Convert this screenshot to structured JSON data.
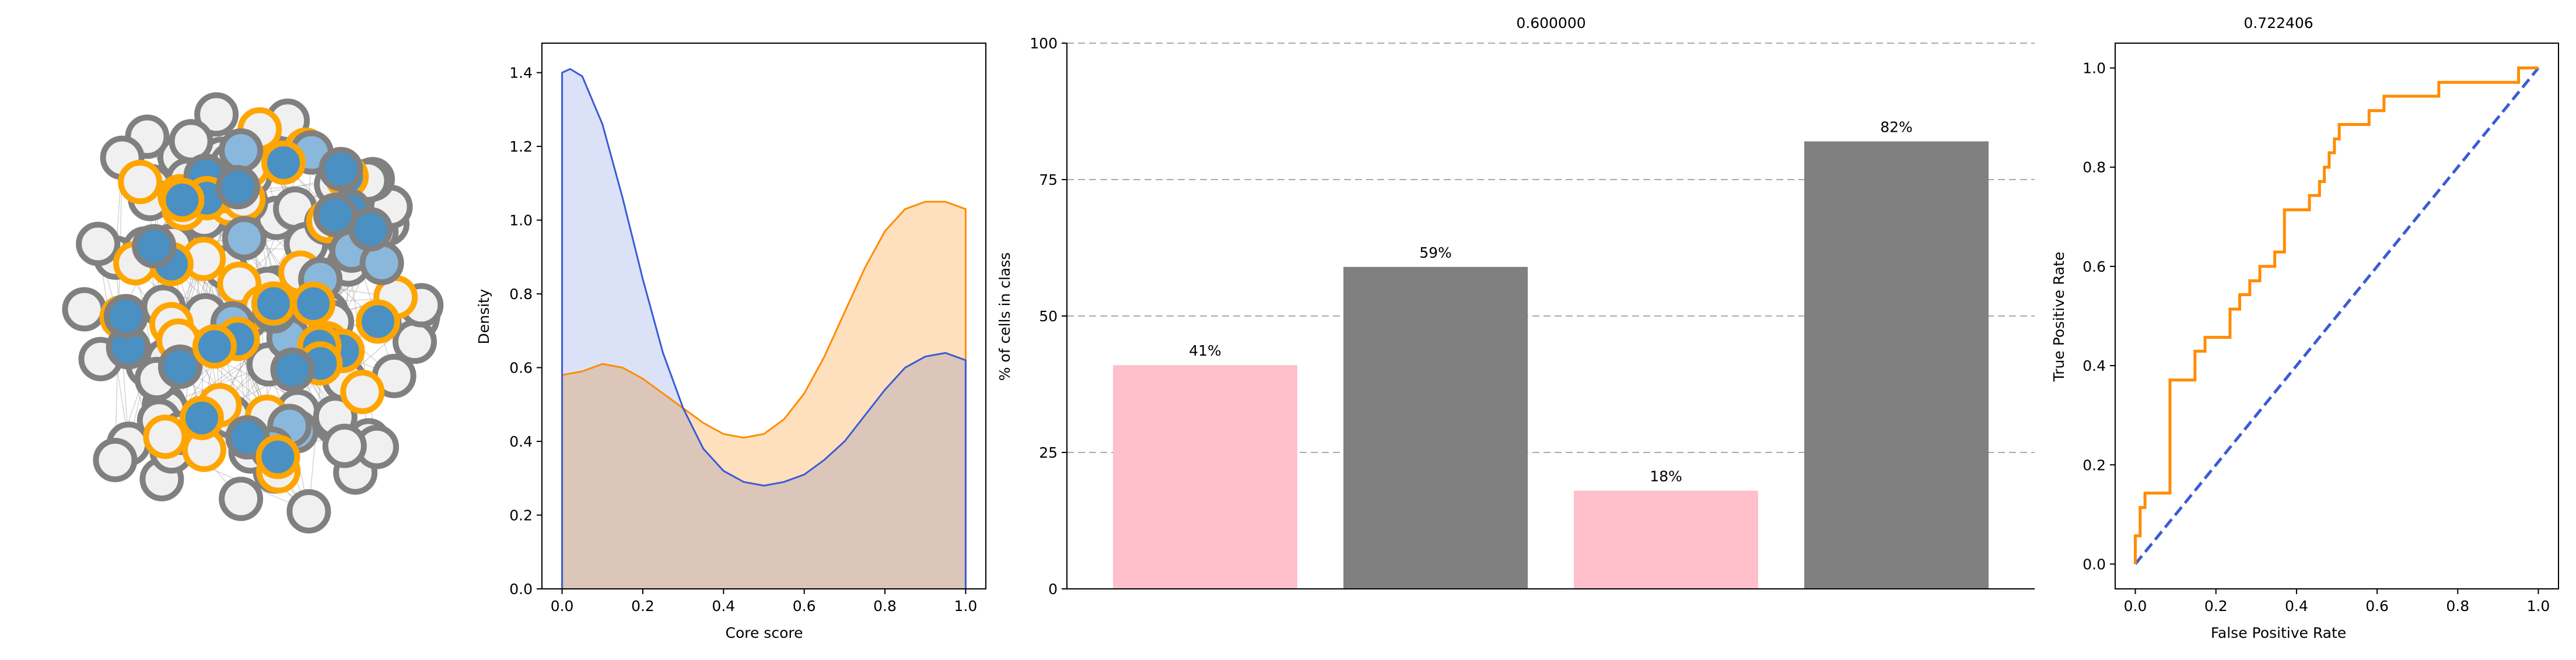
{
  "colors": {
    "blue": "#3b5bd6",
    "blue_fill": "#cfd8f5",
    "orange": "#ff8c00",
    "orange_fill": "#ffe0be",
    "overlap_fill": "#d0c4c8",
    "pink": "#ffc0cb",
    "gray": "#808080",
    "node_gray_edge": "#808080",
    "node_gray_fill": "#f0f0f0",
    "node_orange_edge": "#ffa500",
    "node_blue_fill": "#4a90c2",
    "node_lightblue_fill": "#8ab8dc",
    "edge": "#a0a0a0",
    "grid": "#aaaaaa"
  },
  "chart_data": [
    {
      "type": "network",
      "description_nodes": {
        "gray_periphery": 78,
        "orange_outlined": 26,
        "blue_core": 40
      },
      "node_outline_colors": [
        "gray",
        "orange"
      ],
      "node_fill_colors": [
        "light gray",
        "blue",
        "light blue"
      ]
    },
    {
      "type": "area",
      "xlabel": "Core score",
      "ylabel": "Density",
      "xlim": [
        -0.05,
        1.05
      ],
      "ylim": [
        0.0,
        1.48
      ],
      "xticks": [
        "0.0",
        "0.2",
        "0.4",
        "0.6",
        "0.8",
        "1.0"
      ],
      "yticks": [
        "0.0",
        "0.2",
        "0.4",
        "0.6",
        "0.8",
        "1.0",
        "1.2",
        "1.4"
      ],
      "series": [
        {
          "color": "blue",
          "x": [
            0.0,
            0.02,
            0.05,
            0.1,
            0.15,
            0.2,
            0.25,
            0.3,
            0.35,
            0.4,
            0.45,
            0.5,
            0.55,
            0.6,
            0.65,
            0.7,
            0.75,
            0.8,
            0.85,
            0.9,
            0.95,
            1.0
          ],
          "y": [
            1.4,
            1.41,
            1.39,
            1.26,
            1.06,
            0.84,
            0.64,
            0.49,
            0.38,
            0.32,
            0.29,
            0.28,
            0.29,
            0.31,
            0.35,
            0.4,
            0.47,
            0.54,
            0.6,
            0.63,
            0.64,
            0.62
          ]
        },
        {
          "color": "orange",
          "x": [
            0.0,
            0.05,
            0.1,
            0.15,
            0.2,
            0.25,
            0.3,
            0.35,
            0.4,
            0.45,
            0.5,
            0.55,
            0.6,
            0.65,
            0.7,
            0.75,
            0.8,
            0.85,
            0.9,
            0.95,
            1.0
          ],
          "y": [
            0.58,
            0.59,
            0.61,
            0.6,
            0.57,
            0.53,
            0.49,
            0.45,
            0.42,
            0.41,
            0.42,
            0.46,
            0.53,
            0.63,
            0.75,
            0.87,
            0.97,
            1.03,
            1.05,
            1.05,
            1.03
          ]
        }
      ]
    },
    {
      "type": "bar",
      "title": "0.600000",
      "ylabel": "% of cells in class",
      "ylim": [
        0,
        100
      ],
      "yticks": [
        0,
        25,
        50,
        75,
        100
      ],
      "grid": "horizontal dashed",
      "values": [
        41,
        59,
        18,
        82
      ],
      "value_labels": [
        "41%",
        "59%",
        "18%",
        "82%"
      ],
      "bar_colors": [
        "pink",
        "gray",
        "pink",
        "gray"
      ]
    },
    {
      "type": "line",
      "title": "0.722406",
      "xlabel": "False Positive Rate",
      "ylabel": "True Positive Rate",
      "xlim": [
        -0.05,
        1.05
      ],
      "ylim": [
        -0.05,
        1.05
      ],
      "xticks": [
        "0.0",
        "0.2",
        "0.4",
        "0.6",
        "0.8",
        "1.0"
      ],
      "yticks": [
        "0.0",
        "0.2",
        "0.4",
        "0.6",
        "0.8",
        "1.0"
      ],
      "roc_curve": {
        "color": "orange",
        "points": [
          [
            0.0,
            0.0
          ],
          [
            0.0,
            0.057
          ],
          [
            0.012,
            0.057
          ],
          [
            0.012,
            0.114
          ],
          [
            0.024,
            0.114
          ],
          [
            0.024,
            0.143
          ],
          [
            0.086,
            0.143
          ],
          [
            0.086,
            0.371
          ],
          [
            0.148,
            0.371
          ],
          [
            0.148,
            0.429
          ],
          [
            0.173,
            0.429
          ],
          [
            0.173,
            0.457
          ],
          [
            0.235,
            0.457
          ],
          [
            0.235,
            0.514
          ],
          [
            0.259,
            0.514
          ],
          [
            0.259,
            0.543
          ],
          [
            0.284,
            0.543
          ],
          [
            0.284,
            0.571
          ],
          [
            0.309,
            0.571
          ],
          [
            0.309,
            0.6
          ],
          [
            0.346,
            0.6
          ],
          [
            0.346,
            0.629
          ],
          [
            0.37,
            0.629
          ],
          [
            0.37,
            0.714
          ],
          [
            0.432,
            0.714
          ],
          [
            0.432,
            0.743
          ],
          [
            0.457,
            0.743
          ],
          [
            0.457,
            0.771
          ],
          [
            0.469,
            0.771
          ],
          [
            0.469,
            0.8
          ],
          [
            0.481,
            0.8
          ],
          [
            0.481,
            0.829
          ],
          [
            0.494,
            0.829
          ],
          [
            0.494,
            0.857
          ],
          [
            0.506,
            0.857
          ],
          [
            0.506,
            0.886
          ],
          [
            0.58,
            0.886
          ],
          [
            0.58,
            0.914
          ],
          [
            0.617,
            0.914
          ],
          [
            0.617,
            0.943
          ],
          [
            0.753,
            0.943
          ],
          [
            0.753,
            0.971
          ],
          [
            0.951,
            0.971
          ],
          [
            0.951,
            1.0
          ],
          [
            1.0,
            1.0
          ]
        ]
      },
      "diagonal": {
        "color": "blue",
        "style": "dashed",
        "points": [
          [
            0,
            0
          ],
          [
            1,
            1
          ]
        ]
      }
    }
  ]
}
